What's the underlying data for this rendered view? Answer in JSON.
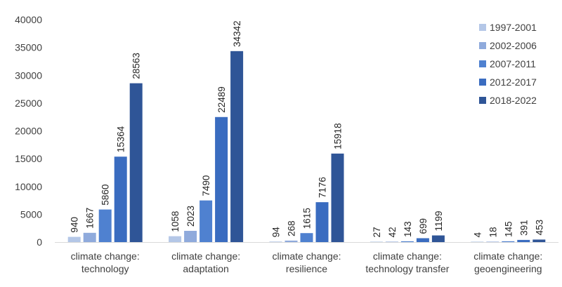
{
  "chart_data": {
    "type": "bar",
    "title": "",
    "xlabel": "",
    "ylabel": "",
    "ylim": [
      0,
      40000
    ],
    "yticks": [
      0,
      5000,
      10000,
      15000,
      20000,
      25000,
      30000,
      35000,
      40000
    ],
    "grid": false,
    "legend_position": "top-right",
    "categories": [
      [
        "climate change:",
        "technology"
      ],
      [
        "climate change:",
        "adaptation"
      ],
      [
        "climate change:",
        "resilience"
      ],
      [
        "climate change:",
        "technology transfer"
      ],
      [
        "climate change:",
        "geoengineering"
      ]
    ],
    "series": [
      {
        "name": "1997-2001",
        "color": "#b4c7e7",
        "values": [
          940,
          1058,
          94,
          27,
          4
        ]
      },
      {
        "name": "2002-2006",
        "color": "#8faadc",
        "values": [
          1667,
          2023,
          268,
          42,
          18
        ]
      },
      {
        "name": "2007-2011",
        "color": "#4f81d0",
        "values": [
          5860,
          7490,
          1615,
          143,
          145
        ]
      },
      {
        "name": "2012-2017",
        "color": "#3a6cc0",
        "values": [
          15364,
          22489,
          7176,
          699,
          391
        ]
      },
      {
        "name": "2018-2022",
        "color": "#2f5597",
        "values": [
          28563,
          34342,
          15918,
          1199,
          453
        ]
      }
    ]
  }
}
